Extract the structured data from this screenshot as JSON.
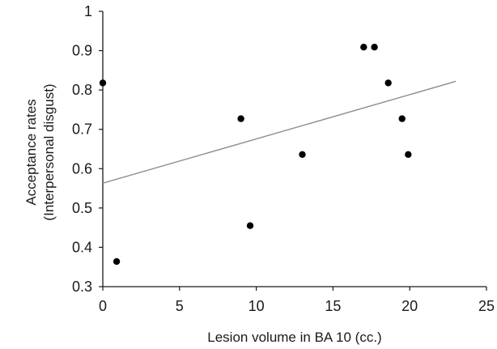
{
  "chart_data": {
    "type": "scatter",
    "xlabel": "Lesion volume in BA 10 (cc.)",
    "ylabel_lines": [
      "Acceptance rates",
      "(Interpersonal disgust)"
    ],
    "xlim": [
      0,
      25
    ],
    "ylim": [
      0.3,
      1
    ],
    "x_ticks": [
      0,
      5,
      10,
      15,
      20,
      25
    ],
    "y_ticks": [
      0.3,
      0.4,
      0.5,
      0.6,
      0.7,
      0.8,
      0.9,
      1
    ],
    "y_tick_labels": [
      "0.3",
      "0.4",
      "0.5",
      "0.6",
      "0.7",
      "0.8",
      "0.9",
      "1"
    ],
    "x_tick_labels": [
      "0",
      "5",
      "10",
      "15",
      "20",
      "25"
    ],
    "grid": false,
    "series": [
      {
        "points": [
          {
            "x": 0.0,
            "y": 0.818
          },
          {
            "x": 0.9,
            "y": 0.364
          },
          {
            "x": 9.0,
            "y": 0.727
          },
          {
            "x": 9.6,
            "y": 0.455
          },
          {
            "x": 13.0,
            "y": 0.636
          },
          {
            "x": 17.0,
            "y": 0.909
          },
          {
            "x": 17.7,
            "y": 0.909
          },
          {
            "x": 18.6,
            "y": 0.818
          },
          {
            "x": 19.5,
            "y": 0.727
          },
          {
            "x": 19.9,
            "y": 0.636
          }
        ]
      }
    ],
    "trendline": {
      "x": [
        0,
        23
      ],
      "y": [
        0.563,
        0.822
      ]
    },
    "colors": {
      "points": "#000000",
      "trendline": "#8c8c8c",
      "axes": "#1a1a1a"
    }
  }
}
